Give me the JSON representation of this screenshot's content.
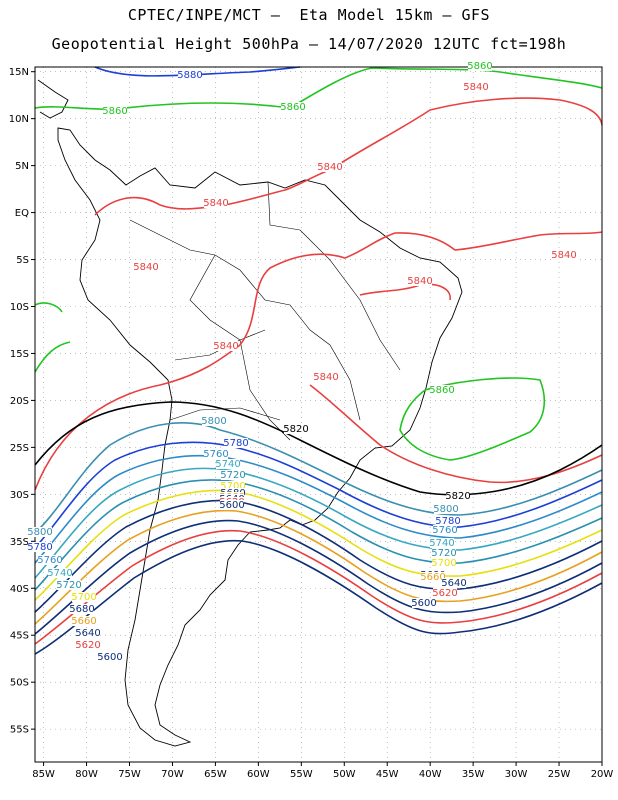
{
  "titles": {
    "line1": "CPTEC/INPE/MCT –  Eta Model 15km – GFS",
    "line2": "Geopotential Height 500hPa – 14/07/2020 12UTC fct=198h"
  },
  "map": {
    "lon_range": [
      -86,
      -20
    ],
    "lat_range": [
      -58.5,
      15.5
    ],
    "lat_labels": [
      "15N",
      "10N",
      "5N",
      "EQ",
      "5S",
      "10S",
      "15S",
      "20S",
      "25S",
      "30S",
      "35S",
      "40S",
      "45S",
      "50S",
      "55S"
    ],
    "lon_labels": [
      "85W",
      "80W",
      "75W",
      "70W",
      "65W",
      "60W",
      "55W",
      "50W",
      "45W",
      "40W",
      "35W",
      "30W",
      "25W",
      "20W"
    ],
    "grid": "dotted"
  },
  "contours": [
    {
      "value": "5880",
      "color": "#1c3fd6",
      "labels": [
        "5880"
      ]
    },
    {
      "value": "5860",
      "color": "#22c422",
      "labels": [
        "5860",
        "5860",
        "5860",
        "5860"
      ]
    },
    {
      "value": "5840",
      "color": "#e84040",
      "labels": [
        "5840",
        "5840",
        "5840",
        "5840",
        "5840",
        "5840",
        "5840",
        "5840"
      ]
    },
    {
      "value": "5820",
      "color": "#000000",
      "labels": [
        "5820",
        "5820"
      ]
    },
    {
      "value": "5800",
      "color": "#3a8fb0",
      "labels": [
        "5800",
        "5800",
        "5800"
      ]
    },
    {
      "value": "5780",
      "color": "#1c3fd6",
      "labels": [
        "5780",
        "5780",
        "5780"
      ]
    },
    {
      "value": "5760",
      "color": "#2e8bc8",
      "labels": [
        "5760",
        "5760",
        "5760"
      ]
    },
    {
      "value": "5740",
      "color": "#38a8c0",
      "labels": [
        "5740",
        "5740",
        "5740"
      ]
    },
    {
      "value": "5720",
      "color": "#2a90b0",
      "labels": [
        "5720",
        "5720",
        "5720"
      ]
    },
    {
      "value": "5700",
      "color": "#e6e010",
      "labels": [
        "5700",
        "5700",
        "5700"
      ]
    },
    {
      "value": "5680",
      "color": "#0e2f78",
      "labels": [
        "5680",
        "5680",
        "5680"
      ]
    },
    {
      "value": "5660",
      "color": "#e8a020",
      "labels": [
        "5660",
        "5660",
        "5660"
      ]
    },
    {
      "value": "5640",
      "color": "#0e2f78",
      "labels": [
        "5640",
        "5640",
        "5640"
      ]
    },
    {
      "value": "5620",
      "color": "#e84040",
      "labels": [
        "5620",
        "5620",
        "5620"
      ]
    },
    {
      "value": "5600",
      "color": "#0e2f78",
      "labels": [
        "5600",
        "5600",
        "5600"
      ]
    }
  ]
}
